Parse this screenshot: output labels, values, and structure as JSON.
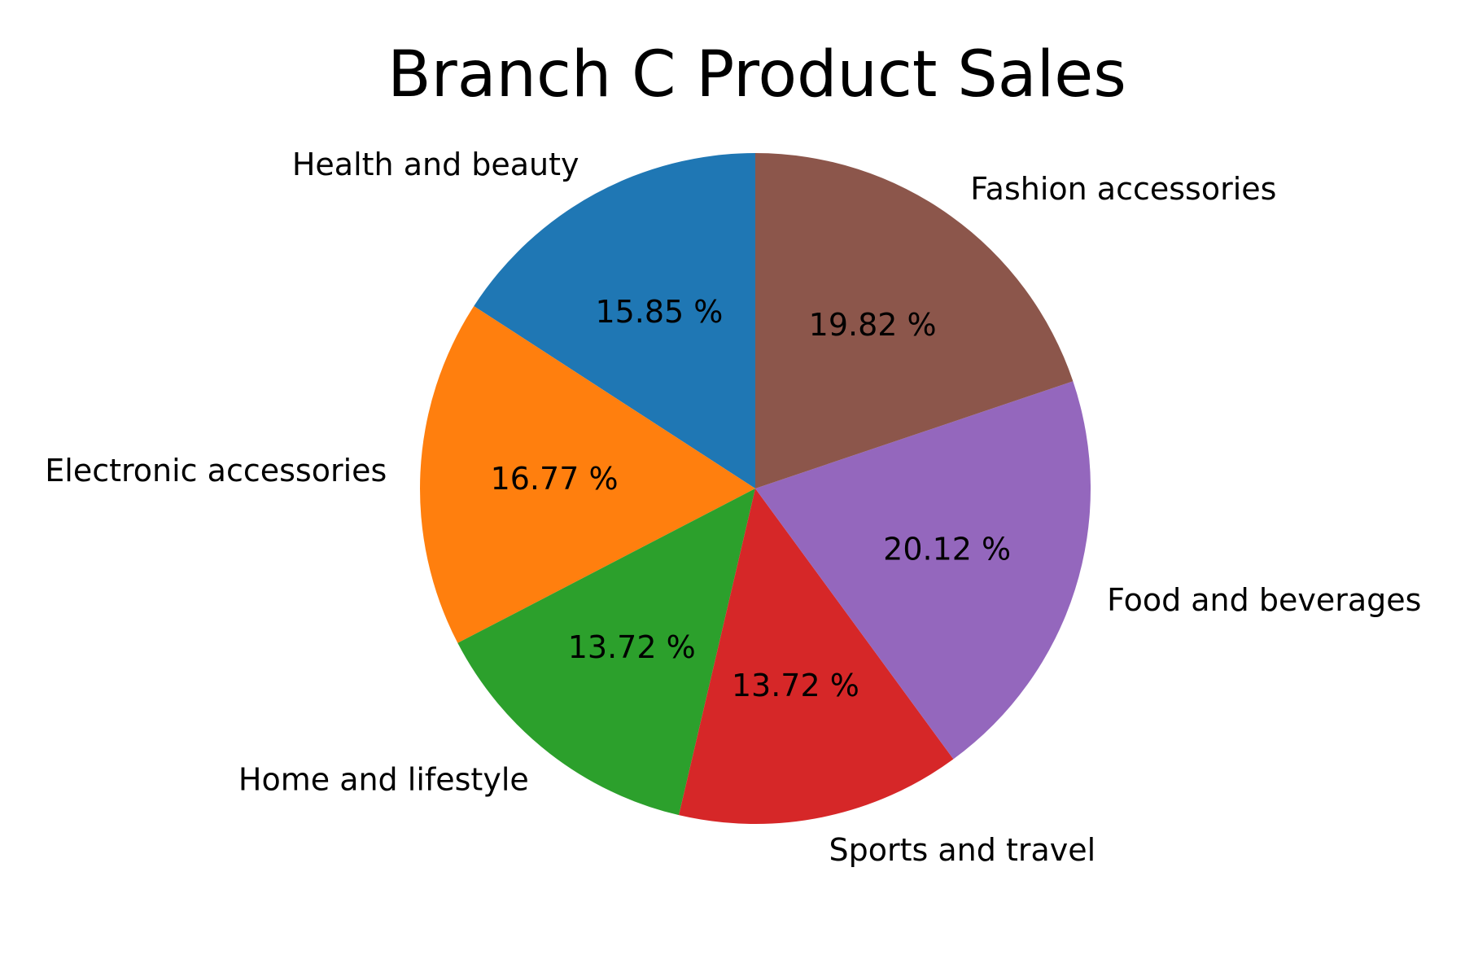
{
  "chart_data": {
    "type": "pie",
    "title": "Branch C Product Sales",
    "start_angle_deg": 90,
    "direction": "counterclockwise",
    "slices": [
      {
        "label": "Health and beauty",
        "value": 15.85,
        "pct_text": "15.85 %",
        "color": "#1f77b4"
      },
      {
        "label": "Electronic accessories",
        "value": 16.77,
        "pct_text": "16.77 %",
        "color": "#ff7f0e"
      },
      {
        "label": "Home and lifestyle",
        "value": 13.72,
        "pct_text": "13.72 %",
        "color": "#2ca02c"
      },
      {
        "label": "Sports and travel",
        "value": 13.72,
        "pct_text": "13.72 %",
        "color": "#d62728"
      },
      {
        "label": "Food and beverages",
        "value": 20.12,
        "pct_text": "20.12 %",
        "color": "#9467bd"
      },
      {
        "label": "Fashion accessories",
        "value": 19.82,
        "pct_text": "19.82 %",
        "color": "#8c564b"
      }
    ]
  }
}
